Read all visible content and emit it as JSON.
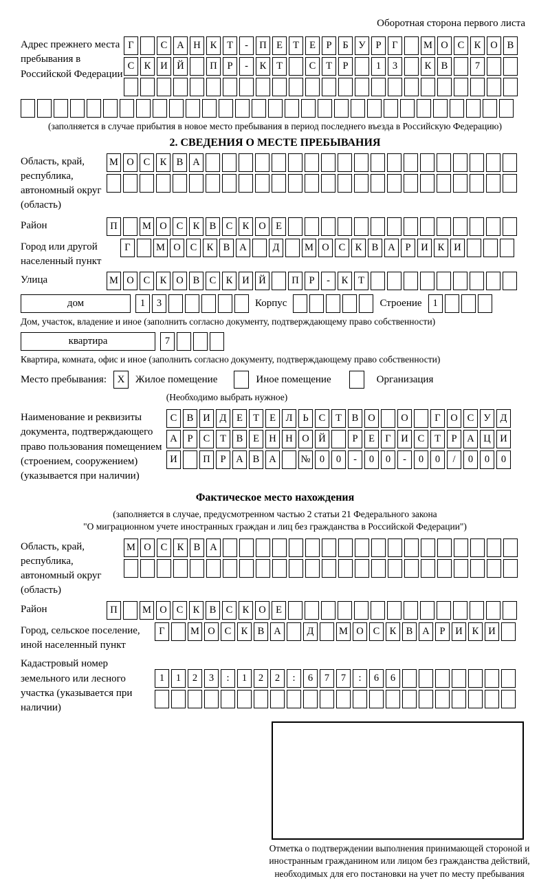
{
  "page": {
    "side_note": "Оборотная сторона первого листа"
  },
  "prev_address": {
    "label": "Адрес прежнего места пребывания в Российской Федерации",
    "row1": [
      "Г",
      "",
      "С",
      "А",
      "Н",
      "К",
      "Т",
      "-",
      "П",
      "Е",
      "Т",
      "Е",
      "Р",
      "Б",
      "У",
      "Р",
      "Г",
      "",
      "М",
      "О",
      "С",
      "К",
      "О",
      "В"
    ],
    "row2": [
      "С",
      "К",
      "И",
      "Й",
      "",
      "П",
      "Р",
      "-",
      "К",
      "Т",
      "",
      "С",
      "Т",
      "Р",
      "",
      "1",
      "3",
      "",
      "К",
      "В",
      "",
      "7",
      "",
      ""
    ],
    "row3": 24,
    "row4": 30,
    "note": "(заполняется в случае прибытия в новое место пребывания в период последнего въезда в Российскую Федерацию)"
  },
  "section2": {
    "title": "2. СВЕДЕНИЯ О МЕСТЕ ПРЕБЫВАНИЯ",
    "region": {
      "label": "Область, край, республика, автономный округ (область)",
      "row1": [
        "М",
        "О",
        "С",
        "К",
        "В",
        "А",
        "",
        "",
        "",
        "",
        "",
        "",
        "",
        "",
        "",
        "",
        "",
        "",
        "",
        "",
        "",
        "",
        "",
        "",
        ""
      ],
      "row2": 25
    },
    "district": {
      "label": "Район",
      "row1": [
        "П",
        "",
        "М",
        "О",
        "С",
        "К",
        "В",
        "С",
        "К",
        "О",
        "Е",
        "",
        "",
        "",
        "",
        "",
        "",
        "",
        "",
        "",
        "",
        "",
        "",
        "",
        ""
      ]
    },
    "city": {
      "label": "Город или другой населенный пункт",
      "row1": [
        "Г",
        "",
        "М",
        "О",
        "С",
        "К",
        "В",
        "А",
        "",
        "Д",
        "",
        "М",
        "О",
        "С",
        "К",
        "В",
        "А",
        "Р",
        "И",
        "К",
        "И",
        "",
        "",
        ""
      ]
    },
    "street": {
      "label": "Улица",
      "row1": [
        "М",
        "О",
        "С",
        "К",
        "О",
        "В",
        "С",
        "К",
        "И",
        "Й",
        "",
        "П",
        "Р",
        "-",
        "К",
        "Т",
        "",
        "",
        "",
        "",
        "",
        "",
        "",
        "",
        ""
      ]
    },
    "house_row": {
      "house_label": "дом",
      "house_cells": [
        "1",
        "3",
        "",
        "",
        "",
        "",
        ""
      ],
      "korpus_label": "Корпус",
      "korpus_cells": 5,
      "stroenie_label": "Строение",
      "stroenie_cells": [
        "1",
        "",
        "",
        ""
      ]
    },
    "house_caption": "Дом, участок, владение и иное (заполнить согласно документу, подтверждающему право собственности)",
    "apartment_row": {
      "label": "квартира",
      "cells": [
        "7",
        "",
        "",
        ""
      ]
    },
    "apartment_caption": "Квартира, комната, офис и иное (заполнить согласно документу, подтверждающему право собственности)",
    "stay_type": {
      "label": "Место пребывания:",
      "option1": {
        "mark": "X",
        "label": "Жилое помещение"
      },
      "option2": {
        "mark": "",
        "label": "Иное помещение"
      },
      "option3": {
        "mark": "",
        "label": "Организация"
      },
      "note": "(Необходимо выбрать нужное)"
    },
    "document": {
      "label": "Наименование и реквизиты документа, подтверждающего право пользования помещением (строением, сооружением) (указывается при наличии)",
      "row1": [
        "С",
        "В",
        "И",
        "Д",
        "Е",
        "Т",
        "Е",
        "Л",
        "Ь",
        "С",
        "Т",
        "В",
        "О",
        "",
        "О",
        "",
        "Г",
        "О",
        "С",
        "У",
        "Д"
      ],
      "row2": [
        "А",
        "Р",
        "С",
        "Т",
        "В",
        "Е",
        "Н",
        "Н",
        "О",
        "Й",
        "",
        "Р",
        "Е",
        "Г",
        "И",
        "С",
        "Т",
        "Р",
        "А",
        "Ц",
        "И"
      ],
      "row3": [
        "И",
        "",
        "П",
        "Р",
        "А",
        "В",
        "А",
        "",
        "№",
        "0",
        "0",
        "-",
        "0",
        "0",
        "-",
        "0",
        "0",
        "/",
        "0",
        "0",
        "0"
      ]
    }
  },
  "actual_location": {
    "title": "Фактическое место нахождения",
    "note_line1": "(заполняется в случае, предусмотренном частью 2 статьи 21 Федерального закона",
    "note_line2": "\"О миграционном учете иностранных граждан и лиц без гражданства в Российской Федерации\")",
    "region": {
      "label": "Область, край, республика, автономный округ (область)",
      "row1": [
        "М",
        "О",
        "С",
        "К",
        "В",
        "А",
        "",
        "",
        "",
        "",
        "",
        "",
        "",
        "",
        "",
        "",
        "",
        "",
        "",
        "",
        "",
        "",
        "",
        ""
      ],
      "row2": 24
    },
    "district": {
      "label": "Район",
      "row1": [
        "П",
        "",
        "М",
        "О",
        "С",
        "К",
        "В",
        "С",
        "К",
        "О",
        "Е",
        "",
        "",
        "",
        "",
        "",
        "",
        "",
        "",
        "",
        "",
        "",
        "",
        "",
        ""
      ]
    },
    "city": {
      "label": "Город, сельское поселение, иной населенный пункт",
      "row1": [
        "Г",
        "",
        "М",
        "О",
        "С",
        "К",
        "В",
        "А",
        "",
        "Д",
        "",
        "М",
        "О",
        "С",
        "К",
        "В",
        "А",
        "Р",
        "И",
        "К",
        "И",
        ""
      ]
    },
    "cadastral": {
      "label": "Кадастровый номер земельного или лесного участка (указывается при наличии)",
      "row1": [
        "1",
        "1",
        "2",
        "3",
        ":",
        "1",
        "2",
        "2",
        ":",
        "6",
        "7",
        "7",
        ":",
        "6",
        "6",
        "",
        "",
        "",
        "",
        "",
        "",
        ""
      ],
      "row2": 22
    },
    "stamp_caption": "Отметка о подтверждении выполнения принимающей стороной и иностранным гражданином или лицом без гражданства действий, необходимых для его постановки на учет по месту пребывания"
  }
}
